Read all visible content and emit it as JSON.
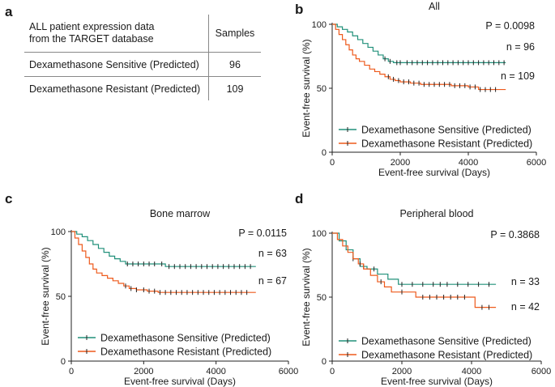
{
  "panel_labels": {
    "a": "a",
    "b": "b",
    "c": "c",
    "d": "d"
  },
  "table": {
    "header_left_line1": "ALL patient expression data",
    "header_left_line2": "from the TARGET database",
    "header_right": "Samples",
    "rows": [
      {
        "label": "Dexamethasone Sensitive (Predicted)",
        "value": "96"
      },
      {
        "label": "Dexamethasone Resistant  (Predicted)",
        "value": "109"
      }
    ]
  },
  "colors": {
    "sensitive": "#21907a",
    "resistant": "#ee5a1c",
    "axis": "#222222",
    "censor": "#222222"
  },
  "chart_data": [
    {
      "panel": "b",
      "type": "line",
      "title": "All",
      "xlabel": "Event-free survival (Days)",
      "ylabel": "Event-free survival (%)",
      "xlim": [
        0,
        6000
      ],
      "ylim": [
        0,
        100
      ],
      "xticks": [
        0,
        2000,
        4000,
        6000
      ],
      "yticks": [
        0,
        50,
        100
      ],
      "pvalue": "P = 0.0098",
      "legend_position": "bottom-left",
      "series": [
        {
          "name": "Dexamethasone Sensitive (Predicted)",
          "color": "#21907a",
          "n_label": "n = 96",
          "x": [
            0,
            150,
            300,
            450,
            600,
            750,
            900,
            1050,
            1200,
            1350,
            1500,
            1650,
            1800,
            5100
          ],
          "y": [
            100,
            98,
            96,
            94,
            91,
            88,
            85,
            82,
            79,
            76,
            73,
            71,
            70,
            70
          ],
          "censor_x": [
            1550,
            1700,
            1900,
            2000,
            2200,
            2350,
            2500,
            2650,
            2800,
            2950,
            3100,
            3250,
            3400,
            3550,
            3700,
            3850,
            4000,
            4150,
            4300,
            4450,
            4600,
            4750,
            4900,
            5050
          ]
        },
        {
          "name": "Dexamethasone Resistant (Predicted)",
          "color": "#ee5a1c",
          "n_label": "n = 109",
          "x": [
            0,
            100,
            200,
            300,
            400,
            500,
            600,
            700,
            800,
            950,
            1100,
            1250,
            1400,
            1550,
            1700,
            1850,
            2000,
            2300,
            2600,
            3000,
            3500,
            4000,
            4300,
            5100
          ],
          "y": [
            100,
            96,
            92,
            88,
            84,
            80,
            76,
            73,
            71,
            68,
            65,
            63,
            61,
            59,
            57,
            56,
            55,
            54,
            53,
            53,
            52,
            51,
            49,
            49
          ],
          "censor_x": [
            1650,
            1800,
            1950,
            2100,
            2250,
            2400,
            2550,
            2700,
            2850,
            3000,
            3150,
            3300,
            3450,
            3600,
            3750,
            3900,
            4050,
            4200,
            4350,
            4500,
            4650,
            4800
          ]
        }
      ]
    },
    {
      "panel": "c",
      "type": "line",
      "title": "Bone marrow",
      "xlabel": "Event-free survival (Days)",
      "ylabel": "Event-free survival (%)",
      "xlim": [
        0,
        6000
      ],
      "ylim": [
        0,
        100
      ],
      "xticks": [
        0,
        2000,
        4000,
        6000
      ],
      "yticks": [
        0,
        50,
        100
      ],
      "pvalue": "P = 0.0115",
      "legend_position": "bottom-left",
      "series": [
        {
          "name": "Dexamethasone Sensitive (Predicted)",
          "color": "#21907a",
          "n_label": "n = 63",
          "x": [
            0,
            150,
            300,
            450,
            600,
            750,
            900,
            1050,
            1200,
            1350,
            1500,
            2400,
            2600,
            5100
          ],
          "y": [
            100,
            98,
            96,
            93,
            90,
            87,
            84,
            81,
            79,
            77,
            75,
            75,
            73,
            73
          ],
          "censor_x": [
            1550,
            1700,
            1850,
            2000,
            2150,
            2300,
            2500,
            2700,
            2850,
            3000,
            3150,
            3300,
            3450,
            3600,
            3750,
            3900,
            4050,
            4200,
            4350,
            4500,
            4650,
            4800,
            4950
          ]
        },
        {
          "name": "Dexamethasone Resistant (Predicted)",
          "color": "#ee5a1c",
          "n_label": "n = 67",
          "x": [
            0,
            100,
            200,
            300,
            400,
            500,
            600,
            700,
            850,
            1000,
            1150,
            1300,
            1450,
            1600,
            1800,
            2100,
            2400,
            2800,
            5100
          ],
          "y": [
            100,
            95,
            90,
            85,
            80,
            75,
            71,
            68,
            66,
            64,
            62,
            60,
            58,
            56,
            55,
            54,
            53,
            53,
            53
          ],
          "censor_x": [
            1500,
            1650,
            1800,
            2000,
            2150,
            2300,
            2450,
            2600,
            2750,
            2900,
            3050,
            3200,
            3350,
            3500,
            3650,
            3800,
            3950,
            4100,
            4250,
            4400,
            4550,
            4700,
            4850
          ]
        }
      ]
    },
    {
      "panel": "d",
      "type": "line",
      "title": "Peripheral blood",
      "xlabel": "Event-free survival (Days)",
      "ylabel": "Event-free survival (%)",
      "xlim": [
        0,
        6000
      ],
      "ylim": [
        0,
        100
      ],
      "xticks": [
        0,
        2000,
        4000,
        6000
      ],
      "yticks": [
        0,
        50,
        100
      ],
      "pvalue": "P = 0.3868",
      "legend_position": "bottom-left",
      "series": [
        {
          "name": "Dexamethasone Sensitive (Predicted)",
          "color": "#21907a",
          "n_label": "n = 33",
          "x": [
            0,
            200,
            400,
            600,
            800,
            1000,
            1300,
            1600,
            1900,
            4700
          ],
          "y": [
            100,
            94,
            87,
            80,
            74,
            72,
            68,
            64,
            60,
            60
          ],
          "censor_x": [
            600,
            900,
            1200,
            2000,
            2300,
            2600,
            2900,
            3100,
            3300,
            3600,
            3900,
            4200,
            4500
          ]
        },
        {
          "name": "Dexamethasone Resistant (Predicted)",
          "color": "#ee5a1c",
          "n_label": "n = 42",
          "x": [
            0,
            150,
            300,
            450,
            600,
            750,
            900,
            1100,
            1300,
            1500,
            1700,
            2400,
            4100,
            4700
          ],
          "y": [
            100,
            95,
            90,
            85,
            80,
            76,
            72,
            67,
            62,
            58,
            54,
            50,
            42,
            42
          ],
          "censor_x": [
            800,
            1400,
            2000,
            2600,
            2800,
            3000,
            3200,
            3400,
            3600,
            3800,
            4300,
            4500
          ]
        }
      ]
    }
  ]
}
